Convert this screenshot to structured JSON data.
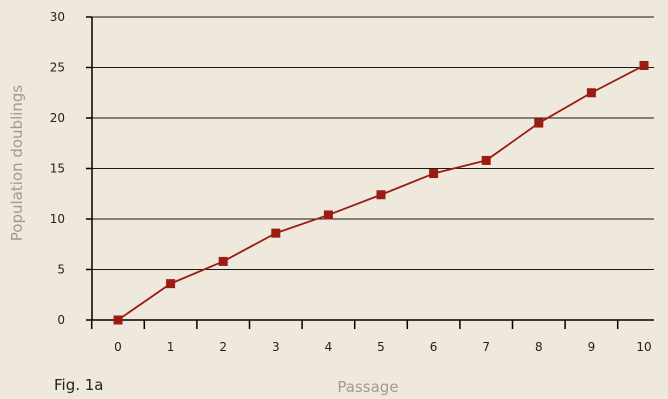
{
  "chart_data": {
    "type": "line",
    "xlabel": "Passage",
    "ylabel": "Population doublings",
    "figure_label": "Fig. 1a",
    "x": [
      0,
      1,
      2,
      3,
      4,
      5,
      6,
      7,
      8,
      9,
      10
    ],
    "series": [
      {
        "values": [
          0,
          3.6,
          5.8,
          8.6,
          10.4,
          12.4,
          14.5,
          15.8,
          19.5,
          22.5,
          25.2
        ]
      }
    ],
    "xticks": [
      0,
      1,
      2,
      3,
      4,
      5,
      6,
      7,
      8,
      9,
      10
    ],
    "yticks": [
      0,
      5,
      10,
      15,
      20,
      25,
      30
    ],
    "ylim": [
      0,
      30
    ],
    "grid": "horizontal",
    "colors": {
      "line": "#9b1c12",
      "marker": "#9b1c12",
      "grid": "#1a1a1a",
      "background": "#efe8dc"
    }
  }
}
